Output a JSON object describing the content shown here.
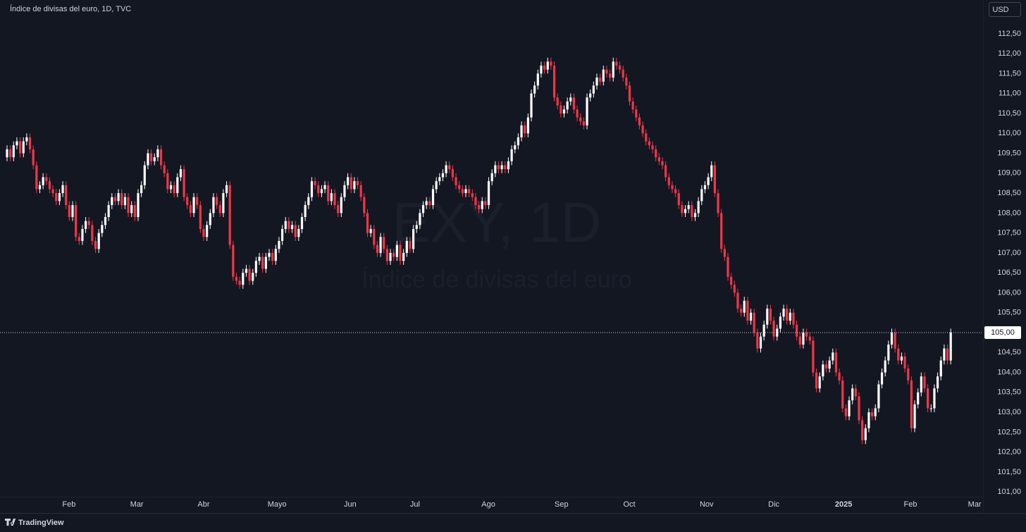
{
  "header": {
    "title": "Índice de divisas del euro, 1D, TVC",
    "currency": "USD"
  },
  "watermark": {
    "symbol": "EXY, 1D",
    "name": "Índice de divisas del euro"
  },
  "footer": {
    "brand": "TradingView"
  },
  "chart_data": {
    "type": "candlestick",
    "up_color": "#ffffff",
    "down_color": "#f23645",
    "open": [
      109.4,
      109.6,
      109.4,
      109.7,
      109.8,
      109.5,
      109.8,
      109.9,
      109.6,
      109.2,
      108.6,
      108.7,
      108.9,
      108.8,
      108.6,
      108.5,
      108.3,
      108.5,
      108.7,
      108.2,
      107.9,
      108.2,
      107.4,
      107.3,
      107.6,
      107.8,
      107.7,
      107.3,
      107.1,
      107.5,
      107.7,
      107.9,
      108.2,
      108.4,
      108.3,
      108.5,
      108.2,
      108.4,
      108.0,
      108.2,
      107.9,
      108.5,
      108.7,
      109.2,
      109.5,
      109.3,
      109.4,
      109.6,
      109.2,
      109.0,
      108.6,
      108.7,
      108.5,
      108.9,
      109.1,
      108.4,
      108.2,
      108.0,
      108.4,
      108.2,
      107.6,
      107.4,
      107.7,
      108.0,
      108.4,
      108.2,
      108.0,
      108.5,
      108.7,
      107.2,
      106.4,
      106.3,
      106.2,
      106.5,
      106.6,
      106.3,
      106.5,
      106.8,
      106.9,
      106.6,
      106.9,
      107.0,
      106.8,
      107.1,
      107.3,
      107.6,
      107.8,
      107.6,
      107.7,
      107.4,
      107.6,
      107.9,
      108.2,
      108.4,
      108.8,
      108.7,
      108.5,
      108.6,
      108.7,
      108.3,
      108.5,
      108.2,
      108.0,
      108.4,
      108.7,
      108.9,
      108.6,
      108.8,
      108.7,
      108.4,
      108.0,
      107.5,
      107.6,
      107.2,
      107.0,
      107.4,
      107.1,
      106.8,
      107.0,
      106.9,
      107.2,
      106.8,
      107.0,
      107.3,
      107.1,
      107.6,
      107.7,
      108.0,
      108.2,
      108.3,
      108.2,
      108.6,
      108.8,
      108.9,
      109.0,
      109.2,
      109.1,
      108.9,
      108.7,
      108.6,
      108.5,
      108.6,
      108.5,
      108.4,
      108.2,
      108.1,
      108.3,
      108.2,
      108.8,
      109.0,
      109.2,
      109.1,
      109.2,
      109.1,
      109.3,
      109.6,
      109.7,
      109.9,
      110.2,
      110.0,
      110.4,
      111.0,
      111.2,
      111.5,
      111.7,
      111.6,
      111.8,
      111.7,
      110.9,
      110.7,
      110.5,
      110.6,
      110.8,
      110.9,
      110.6,
      110.4,
      110.3,
      110.2,
      110.9,
      111.0,
      111.2,
      111.4,
      111.3,
      111.6,
      111.5,
      111.4,
      111.8,
      111.7,
      111.6,
      111.4,
      111.2,
      110.8,
      110.6,
      110.4,
      110.2,
      110.0,
      109.8,
      109.7,
      109.6,
      109.4,
      109.3,
      109.2,
      108.9,
      108.7,
      108.6,
      108.5,
      108.2,
      108.0,
      108.1,
      108.2,
      107.9,
      108.0,
      108.3,
      108.6,
      108.7,
      108.9,
      109.2,
      108.5,
      108.0,
      107.1,
      106.9,
      106.4,
      106.2,
      106.0,
      105.6,
      105.5,
      105.8,
      105.3,
      105.5,
      105.0,
      104.6,
      104.9,
      105.2,
      105.6,
      105.3,
      104.9,
      105.1,
      105.4,
      105.6,
      105.3,
      105.5,
      105.2,
      104.9,
      104.7,
      105.0,
      104.9,
      104.8,
      104.0,
      103.6,
      103.9,
      104.2,
      104.1,
      104.3,
      104.5,
      104.0,
      103.8,
      103.1,
      102.9,
      103.3,
      103.6,
      103.4,
      102.8,
      102.3,
      102.6,
      103.0,
      102.9,
      103.1,
      103.7,
      104.0,
      104.3,
      104.7,
      105.0,
      104.6,
      104.3,
      104.4,
      104.1,
      103.8,
      102.6,
      103.2,
      103.5,
      103.9,
      103.6,
      103.1,
      103.1,
      103.6,
      103.9,
      104.3,
      104.6,
      104.3
    ],
    "high": [
      109.7,
      109.7,
      109.8,
      109.9,
      109.9,
      109.9,
      110.0,
      110.0,
      109.7,
      109.3,
      108.8,
      109.0,
      109.0,
      108.9,
      108.7,
      108.6,
      108.6,
      108.8,
      108.8,
      108.3,
      108.3,
      108.3,
      107.5,
      107.7,
      107.9,
      107.9,
      107.8,
      107.4,
      107.6,
      107.8,
      108.0,
      108.3,
      108.5,
      108.5,
      108.6,
      108.6,
      108.5,
      108.5,
      108.3,
      108.3,
      108.6,
      108.8,
      109.3,
      109.6,
      109.6,
      109.5,
      109.7,
      109.7,
      109.3,
      109.1,
      108.8,
      108.8,
      109.0,
      109.2,
      109.2,
      108.5,
      108.3,
      108.5,
      108.5,
      108.3,
      107.7,
      107.8,
      108.1,
      108.5,
      108.5,
      108.3,
      108.6,
      108.8,
      108.8,
      107.3,
      106.5,
      106.4,
      106.6,
      106.7,
      106.7,
      106.6,
      106.9,
      107.0,
      107.0,
      107.0,
      107.1,
      107.1,
      107.2,
      107.4,
      107.7,
      107.9,
      107.9,
      107.8,
      107.8,
      107.7,
      108.0,
      108.3,
      108.5,
      108.9,
      108.9,
      108.8,
      108.7,
      108.8,
      108.8,
      108.6,
      108.6,
      108.3,
      108.5,
      108.8,
      109.0,
      109.0,
      108.9,
      108.9,
      108.8,
      108.5,
      108.1,
      107.7,
      107.7,
      107.3,
      107.5,
      107.5,
      107.2,
      107.1,
      107.1,
      107.3,
      107.3,
      107.1,
      107.4,
      107.4,
      107.7,
      107.8,
      108.1,
      108.3,
      108.4,
      108.4,
      108.7,
      108.9,
      109.0,
      109.1,
      109.3,
      109.3,
      109.2,
      109.0,
      108.8,
      108.7,
      108.7,
      108.7,
      108.6,
      108.5,
      108.3,
      108.4,
      108.4,
      108.9,
      109.1,
      109.3,
      109.3,
      109.3,
      109.3,
      109.4,
      109.7,
      109.8,
      110.0,
      110.3,
      110.3,
      110.5,
      111.1,
      111.3,
      111.6,
      111.8,
      111.8,
      111.9,
      111.9,
      111.8,
      111.0,
      110.8,
      110.7,
      110.9,
      111.0,
      111.0,
      110.7,
      110.5,
      110.4,
      111.0,
      111.1,
      111.3,
      111.5,
      111.5,
      111.7,
      111.7,
      111.6,
      111.9,
      111.9,
      111.8,
      111.7,
      111.5,
      111.3,
      110.9,
      110.7,
      110.5,
      110.3,
      110.1,
      109.9,
      109.8,
      109.7,
      109.5,
      109.4,
      109.3,
      109.0,
      108.8,
      108.7,
      108.6,
      108.3,
      108.2,
      108.3,
      108.3,
      108.1,
      108.4,
      108.7,
      108.8,
      109.0,
      109.3,
      109.3,
      108.6,
      108.1,
      107.2,
      107.0,
      106.5,
      106.3,
      106.1,
      105.7,
      105.9,
      105.9,
      105.6,
      105.6,
      105.1,
      105.0,
      105.3,
      105.7,
      105.7,
      105.4,
      105.2,
      105.5,
      105.7,
      105.7,
      105.6,
      105.6,
      105.3,
      105.0,
      105.1,
      105.1,
      105.0,
      104.9,
      104.1,
      104.0,
      104.3,
      104.3,
      104.4,
      104.6,
      104.6,
      104.1,
      103.9,
      103.2,
      103.4,
      103.7,
      103.7,
      103.5,
      102.9,
      102.7,
      103.1,
      103.1,
      103.2,
      103.8,
      104.1,
      104.4,
      104.8,
      105.1,
      105.1,
      104.7,
      104.5,
      104.5,
      104.2,
      103.9,
      103.3,
      103.6,
      104.0,
      104.0,
      103.7,
      103.2,
      103.7,
      104.0,
      104.4,
      104.7,
      104.7,
      105.1
    ],
    "low": [
      109.3,
      109.3,
      109.3,
      109.6,
      109.4,
      109.4,
      109.7,
      109.5,
      109.1,
      108.5,
      108.5,
      108.6,
      108.7,
      108.5,
      108.4,
      108.2,
      108.2,
      108.4,
      108.1,
      107.8,
      107.8,
      107.3,
      107.2,
      107.2,
      107.5,
      107.6,
      107.2,
      107.0,
      107.0,
      107.4,
      107.6,
      107.8,
      108.1,
      108.2,
      108.2,
      108.1,
      108.1,
      107.9,
      107.9,
      107.8,
      107.8,
      108.4,
      108.6,
      109.1,
      109.2,
      109.2,
      109.3,
      109.1,
      108.9,
      108.5,
      108.5,
      108.4,
      108.4,
      108.8,
      108.3,
      108.1,
      107.9,
      107.9,
      108.1,
      107.5,
      107.3,
      107.3,
      107.6,
      107.9,
      108.1,
      107.9,
      107.9,
      108.4,
      107.1,
      106.3,
      106.2,
      106.1,
      106.1,
      106.4,
      106.2,
      106.2,
      106.4,
      106.7,
      106.5,
      106.5,
      106.8,
      106.7,
      106.7,
      107.0,
      107.2,
      107.5,
      107.5,
      107.5,
      107.3,
      107.3,
      107.5,
      107.8,
      108.1,
      108.3,
      108.6,
      108.4,
      108.4,
      108.5,
      108.2,
      108.2,
      108.1,
      107.9,
      107.9,
      108.3,
      108.6,
      108.5,
      108.5,
      108.6,
      108.3,
      107.9,
      107.4,
      107.4,
      107.1,
      106.9,
      106.9,
      107.0,
      106.7,
      106.7,
      106.8,
      106.8,
      106.7,
      106.7,
      106.9,
      107.0,
      107.0,
      107.5,
      107.6,
      107.9,
      108.1,
      108.1,
      108.1,
      108.5,
      108.7,
      108.8,
      108.9,
      109.0,
      108.8,
      108.6,
      108.5,
      108.4,
      108.4,
      108.4,
      108.3,
      108.1,
      108.0,
      108.0,
      108.1,
      108.1,
      108.7,
      108.9,
      109.0,
      109.0,
      109.0,
      109.0,
      109.2,
      109.5,
      109.6,
      109.8,
      109.9,
      109.9,
      110.3,
      110.9,
      111.1,
      111.4,
      111.5,
      111.5,
      111.6,
      110.8,
      110.6,
      110.4,
      110.4,
      110.5,
      110.7,
      110.5,
      110.3,
      110.2,
      110.1,
      110.1,
      110.8,
      110.9,
      111.1,
      111.2,
      111.2,
      111.4,
      111.3,
      111.3,
      111.6,
      111.5,
      111.3,
      111.1,
      110.7,
      110.5,
      110.3,
      110.1,
      109.9,
      109.7,
      109.6,
      109.5,
      109.3,
      109.2,
      109.1,
      108.8,
      108.6,
      108.5,
      108.4,
      108.1,
      107.9,
      107.9,
      108.0,
      107.8,
      107.8,
      107.9,
      108.2,
      108.5,
      108.6,
      108.8,
      108.4,
      107.9,
      107.0,
      106.8,
      106.3,
      106.1,
      105.9,
      105.5,
      105.4,
      105.4,
      105.2,
      105.2,
      104.9,
      104.5,
      104.5,
      104.8,
      105.1,
      105.2,
      104.8,
      104.8,
      105.0,
      105.3,
      105.2,
      105.2,
      105.1,
      104.8,
      104.6,
      104.6,
      104.8,
      104.7,
      103.9,
      103.5,
      103.5,
      103.8,
      104.0,
      104.0,
      104.2,
      103.9,
      103.7,
      103.0,
      102.8,
      102.8,
      103.2,
      103.3,
      102.7,
      102.2,
      102.2,
      102.5,
      102.8,
      102.8,
      103.0,
      103.6,
      103.9,
      104.2,
      104.6,
      104.5,
      104.2,
      104.2,
      104.0,
      103.7,
      102.5,
      102.5,
      103.1,
      103.4,
      103.5,
      103.0,
      103.0,
      103.0,
      103.5,
      103.8,
      104.2,
      104.2,
      104.2
    ],
    "close": [
      109.6,
      109.4,
      109.7,
      109.8,
      109.5,
      109.8,
      109.9,
      109.6,
      109.2,
      108.6,
      108.7,
      108.9,
      108.8,
      108.6,
      108.5,
      108.3,
      108.5,
      108.7,
      108.2,
      107.9,
      108.2,
      107.4,
      107.3,
      107.6,
      107.8,
      107.7,
      107.3,
      107.1,
      107.5,
      107.7,
      107.9,
      108.2,
      108.4,
      108.3,
      108.5,
      108.2,
      108.4,
      108.0,
      108.2,
      107.9,
      108.5,
      108.7,
      109.2,
      109.5,
      109.3,
      109.4,
      109.6,
      109.2,
      109.0,
      108.6,
      108.7,
      108.5,
      108.9,
      109.1,
      108.4,
      108.2,
      108.0,
      108.4,
      108.2,
      107.6,
      107.4,
      107.7,
      108.0,
      108.4,
      108.2,
      108.0,
      108.5,
      108.7,
      107.2,
      106.4,
      106.3,
      106.2,
      106.5,
      106.6,
      106.3,
      106.5,
      106.8,
      106.9,
      106.6,
      106.9,
      107.0,
      106.8,
      107.1,
      107.3,
      107.6,
      107.8,
      107.6,
      107.7,
      107.4,
      107.6,
      107.9,
      108.2,
      108.4,
      108.8,
      108.7,
      108.5,
      108.6,
      108.7,
      108.3,
      108.5,
      108.2,
      108.0,
      108.4,
      108.7,
      108.9,
      108.6,
      108.8,
      108.7,
      108.4,
      108.0,
      107.5,
      107.6,
      107.2,
      107.0,
      107.4,
      107.1,
      106.8,
      107.0,
      106.9,
      107.2,
      106.8,
      107.0,
      107.3,
      107.1,
      107.6,
      107.7,
      108.0,
      108.2,
      108.3,
      108.2,
      108.6,
      108.8,
      108.9,
      109.0,
      109.2,
      109.1,
      108.9,
      108.7,
      108.6,
      108.5,
      108.6,
      108.5,
      108.4,
      108.2,
      108.1,
      108.3,
      108.2,
      108.8,
      109.0,
      109.2,
      109.1,
      109.2,
      109.1,
      109.3,
      109.6,
      109.7,
      109.9,
      110.2,
      110.0,
      110.4,
      111.0,
      111.2,
      111.5,
      111.7,
      111.6,
      111.8,
      111.7,
      110.9,
      110.7,
      110.5,
      110.6,
      110.8,
      110.9,
      110.6,
      110.4,
      110.3,
      110.2,
      110.9,
      111.0,
      111.2,
      111.4,
      111.3,
      111.6,
      111.5,
      111.4,
      111.8,
      111.7,
      111.6,
      111.4,
      111.2,
      110.8,
      110.6,
      110.4,
      110.2,
      110.0,
      109.8,
      109.7,
      109.6,
      109.4,
      109.3,
      109.2,
      108.9,
      108.7,
      108.6,
      108.5,
      108.2,
      108.0,
      108.1,
      108.2,
      107.9,
      108.0,
      108.3,
      108.6,
      108.7,
      108.9,
      109.2,
      108.5,
      108.0,
      107.1,
      106.9,
      106.4,
      106.2,
      106.0,
      105.6,
      105.5,
      105.8,
      105.3,
      105.5,
      105.0,
      104.6,
      104.9,
      105.2,
      105.6,
      105.3,
      104.9,
      105.1,
      105.4,
      105.6,
      105.3,
      105.5,
      105.2,
      104.9,
      104.7,
      105.0,
      104.9,
      104.8,
      104.0,
      103.6,
      103.9,
      104.2,
      104.1,
      104.3,
      104.5,
      104.0,
      103.8,
      103.1,
      102.9,
      103.3,
      103.6,
      103.4,
      102.8,
      102.3,
      102.6,
      103.0,
      102.9,
      103.1,
      103.7,
      104.0,
      104.3,
      104.7,
      105.0,
      104.6,
      104.3,
      104.4,
      104.1,
      103.8,
      102.6,
      103.2,
      103.5,
      103.9,
      103.6,
      103.1,
      103.1,
      103.6,
      103.9,
      104.3,
      104.6,
      104.3,
      105.0
    ],
    "xlim": [
      -2.15,
      297.85
    ],
    "xticks": [
      {
        "value": 18.9,
        "label": "Feb"
      },
      {
        "value": 39.6,
        "label": "Mar"
      },
      {
        "value": 60,
        "label": "Abr"
      },
      {
        "value": 82.4,
        "label": "Mayo"
      },
      {
        "value": 104.7,
        "label": "Jun"
      },
      {
        "value": 124.5,
        "label": "Jul"
      },
      {
        "value": 146.9,
        "label": "Ago"
      },
      {
        "value": 169.2,
        "label": "Sep"
      },
      {
        "value": 189.9,
        "label": "Oct"
      },
      {
        "value": 213.5,
        "label": "Nov"
      },
      {
        "value": 234,
        "label": "Dic"
      },
      {
        "value": 255.3,
        "label": "2025"
      },
      {
        "value": 275.7,
        "label": "Feb"
      },
      {
        "value": 295.3,
        "label": "Mar"
      }
    ],
    "ylim": [
      100.88,
      113.17
    ],
    "yticks": [
      {
        "value": 101,
        "label": "101,00"
      },
      {
        "value": 101.5,
        "label": "101,50"
      },
      {
        "value": 102,
        "label": "102,00"
      },
      {
        "value": 102.5,
        "label": "102,50"
      },
      {
        "value": 103,
        "label": "103,00"
      },
      {
        "value": 103.5,
        "label": "103,50"
      },
      {
        "value": 104,
        "label": "104,00"
      },
      {
        "value": 104.5,
        "label": "104,50"
      },
      {
        "value": 105,
        "label": "105,00"
      },
      {
        "value": 105.5,
        "label": "105,50"
      },
      {
        "value": 106,
        "label": "106,00"
      },
      {
        "value": 106.5,
        "label": "106,50"
      },
      {
        "value": 107,
        "label": "107,00"
      },
      {
        "value": 107.5,
        "label": "107,50"
      },
      {
        "value": 108,
        "label": "108,00"
      },
      {
        "value": 108.5,
        "label": "108,50"
      },
      {
        "value": 109,
        "label": "109,00"
      },
      {
        "value": 109.5,
        "label": "109,50"
      },
      {
        "value": 110,
        "label": "110,00"
      },
      {
        "value": 110.5,
        "label": "110,50"
      },
      {
        "value": 111,
        "label": "111,00"
      },
      {
        "value": 111.5,
        "label": "111,50"
      },
      {
        "value": 112,
        "label": "112,00"
      },
      {
        "value": 112.5,
        "label": "112,50"
      }
    ],
    "last_price": {
      "value": 105,
      "label": "105,00"
    }
  }
}
